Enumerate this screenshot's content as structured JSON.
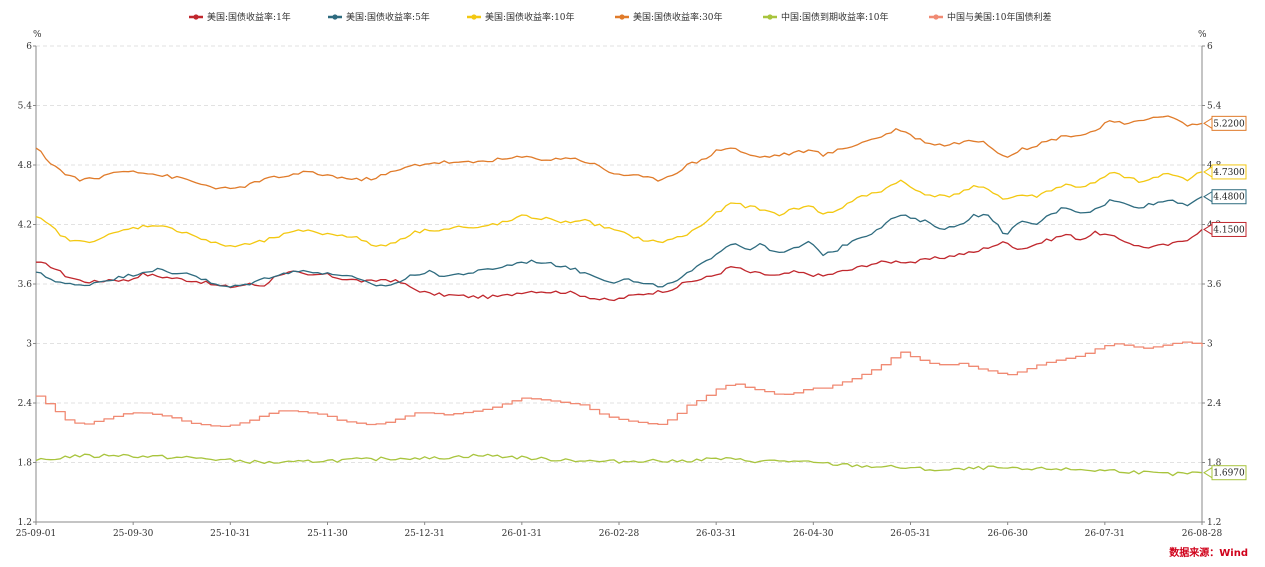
{
  "chart_data": {
    "type": "line",
    "title": "",
    "y_unit_left": "%",
    "y_unit_right": "%",
    "ylim": [
      1.2,
      6
    ],
    "y_ticks": [
      "1.2",
      "1.8",
      "2.4",
      "3",
      "3.6",
      "4.2",
      "4.8",
      "5.4",
      "6"
    ],
    "x_ticks": [
      "25-09-01",
      "25-09-30",
      "25-10-31",
      "25-11-30",
      "25-12-31",
      "26-01-31",
      "26-02-28",
      "26-03-31",
      "26-04-30",
      "26-05-31",
      "26-06-30",
      "26-07-31",
      "26-08-28"
    ],
    "grid": "horizontal-dashed",
    "legend_position": "top-center",
    "source": "数据来源：Wind",
    "series": [
      {
        "name": "美国:国债收益率:1年",
        "color": "#c0272d",
        "step": false,
        "end_label": "4.1500",
        "anchors": [
          3.82,
          3.78,
          3.68,
          3.63,
          3.62,
          3.65,
          3.63,
          3.7,
          3.68,
          3.66,
          3.64,
          3.62,
          3.58,
          3.57,
          3.6,
          3.58,
          3.7,
          3.72,
          3.68,
          3.7,
          3.66,
          3.64,
          3.62,
          3.65,
          3.62,
          3.55,
          3.5,
          3.49,
          3.48,
          3.47,
          3.47,
          3.48,
          3.52,
          3.53,
          3.52,
          3.52,
          3.49,
          3.45,
          3.43,
          3.47,
          3.5,
          3.52,
          3.55,
          3.62,
          3.65,
          3.7,
          3.78,
          3.72,
          3.7,
          3.68,
          3.72,
          3.7,
          3.68,
          3.72,
          3.75,
          3.8,
          3.82,
          3.83,
          3.82,
          3.85,
          3.87,
          3.9,
          3.92,
          3.98,
          4.02,
          3.95,
          4.0,
          4.05,
          4.1,
          4.05,
          4.12,
          4.08,
          4.03,
          3.97,
          3.98,
          4.0,
          4.05,
          4.15
        ]
      },
      {
        "name": "美国:国债收益率:5年",
        "color": "#2e6b7f",
        "step": false,
        "end_label": "4.4800",
        "anchors": [
          3.72,
          3.65,
          3.6,
          3.58,
          3.62,
          3.65,
          3.68,
          3.72,
          3.75,
          3.7,
          3.72,
          3.65,
          3.58,
          3.57,
          3.6,
          3.65,
          3.7,
          3.72,
          3.74,
          3.7,
          3.7,
          3.66,
          3.6,
          3.58,
          3.62,
          3.7,
          3.72,
          3.68,
          3.7,
          3.72,
          3.75,
          3.78,
          3.82,
          3.83,
          3.8,
          3.78,
          3.72,
          3.68,
          3.62,
          3.65,
          3.6,
          3.58,
          3.6,
          3.7,
          3.8,
          3.92,
          4.02,
          3.95,
          4.0,
          3.9,
          3.95,
          4.02,
          3.9,
          3.95,
          4.05,
          4.1,
          4.2,
          4.3,
          4.25,
          4.22,
          4.15,
          4.2,
          4.3,
          4.28,
          4.1,
          4.22,
          4.2,
          4.3,
          4.38,
          4.32,
          4.35,
          4.45,
          4.4,
          4.38,
          4.42,
          4.45,
          4.4,
          4.48
        ]
      },
      {
        "name": "美国:国债收益率:10年",
        "color": "#f3c811",
        "step": false,
        "end_label": "4.7300",
        "anchors": [
          4.28,
          4.18,
          4.05,
          4.02,
          4.05,
          4.1,
          4.15,
          4.18,
          4.2,
          4.15,
          4.12,
          4.05,
          4.0,
          3.98,
          4.0,
          4.03,
          4.08,
          4.12,
          4.15,
          4.1,
          4.1,
          4.08,
          4.0,
          3.98,
          4.05,
          4.12,
          4.15,
          4.15,
          4.18,
          4.15,
          4.2,
          4.22,
          4.28,
          4.27,
          4.25,
          4.22,
          4.25,
          4.2,
          4.15,
          4.1,
          4.05,
          4.02,
          4.05,
          4.1,
          4.2,
          4.32,
          4.42,
          4.38,
          4.35,
          4.3,
          4.35,
          4.4,
          4.3,
          4.35,
          4.45,
          4.5,
          4.55,
          4.65,
          4.55,
          4.5,
          4.48,
          4.52,
          4.58,
          4.55,
          4.45,
          4.5,
          4.48,
          4.55,
          4.6,
          4.58,
          4.62,
          4.72,
          4.68,
          4.62,
          4.68,
          4.72,
          4.65,
          4.73
        ]
      },
      {
        "name": "美国:国债收益率:30年",
        "color": "#e07b2a",
        "step": false,
        "end_label": "5.2200",
        "anchors": [
          4.97,
          4.82,
          4.7,
          4.65,
          4.66,
          4.72,
          4.75,
          4.73,
          4.7,
          4.68,
          4.65,
          4.6,
          4.57,
          4.55,
          4.6,
          4.65,
          4.68,
          4.7,
          4.73,
          4.7,
          4.68,
          4.65,
          4.66,
          4.7,
          4.75,
          4.8,
          4.82,
          4.83,
          4.82,
          4.83,
          4.85,
          4.86,
          4.88,
          4.87,
          4.85,
          4.88,
          4.85,
          4.8,
          4.72,
          4.7,
          4.68,
          4.65,
          4.7,
          4.8,
          4.85,
          4.95,
          4.98,
          4.9,
          4.88,
          4.9,
          4.92,
          4.95,
          4.9,
          4.95,
          5.0,
          5.05,
          5.1,
          5.17,
          5.08,
          5.02,
          5.0,
          5.03,
          5.05,
          5.0,
          4.88,
          4.95,
          5.0,
          5.05,
          5.1,
          5.1,
          5.15,
          5.25,
          5.2,
          5.25,
          5.3,
          5.28,
          5.2,
          5.22
        ]
      },
      {
        "name": "中国:国债到期收益率:10年",
        "color": "#a8c43d",
        "step": false,
        "end_label": "1.6970",
        "anchors": [
          1.82,
          1.83,
          1.86,
          1.87,
          1.86,
          1.88,
          1.87,
          1.86,
          1.86,
          1.85,
          1.85,
          1.84,
          1.83,
          1.82,
          1.81,
          1.8,
          1.8,
          1.8,
          1.81,
          1.82,
          1.82,
          1.83,
          1.83,
          1.84,
          1.84,
          1.85,
          1.84,
          1.85,
          1.86,
          1.87,
          1.87,
          1.86,
          1.85,
          1.84,
          1.83,
          1.83,
          1.82,
          1.81,
          1.81,
          1.81,
          1.82,
          1.82,
          1.81,
          1.82,
          1.83,
          1.84,
          1.83,
          1.82,
          1.81,
          1.82,
          1.81,
          1.8,
          1.79,
          1.78,
          1.77,
          1.76,
          1.76,
          1.75,
          1.74,
          1.73,
          1.72,
          1.73,
          1.74,
          1.75,
          1.74,
          1.73,
          1.73,
          1.74,
          1.73,
          1.73,
          1.72,
          1.72,
          1.71,
          1.7,
          1.69,
          1.68,
          1.69,
          1.697
        ]
      },
      {
        "name": "中国与美国:10年国债利差",
        "color": "#f08a73",
        "step": true,
        "end_label": "",
        "anchors": [
          2.47,
          2.35,
          2.22,
          2.18,
          2.22,
          2.26,
          2.3,
          2.3,
          2.28,
          2.25,
          2.2,
          2.18,
          2.16,
          2.18,
          2.22,
          2.28,
          2.32,
          2.32,
          2.3,
          2.28,
          2.22,
          2.2,
          2.18,
          2.2,
          2.25,
          2.3,
          2.3,
          2.28,
          2.3,
          2.32,
          2.35,
          2.4,
          2.45,
          2.44,
          2.42,
          2.4,
          2.38,
          2.3,
          2.25,
          2.22,
          2.2,
          2.18,
          2.25,
          2.38,
          2.45,
          2.55,
          2.6,
          2.55,
          2.52,
          2.48,
          2.5,
          2.55,
          2.55,
          2.6,
          2.65,
          2.72,
          2.8,
          2.92,
          2.85,
          2.8,
          2.78,
          2.8,
          2.75,
          2.72,
          2.68,
          2.72,
          2.78,
          2.82,
          2.85,
          2.88,
          2.95,
          3.0,
          2.98,
          2.95,
          2.97,
          3.0,
          3.02,
          2.97
        ]
      }
    ]
  }
}
